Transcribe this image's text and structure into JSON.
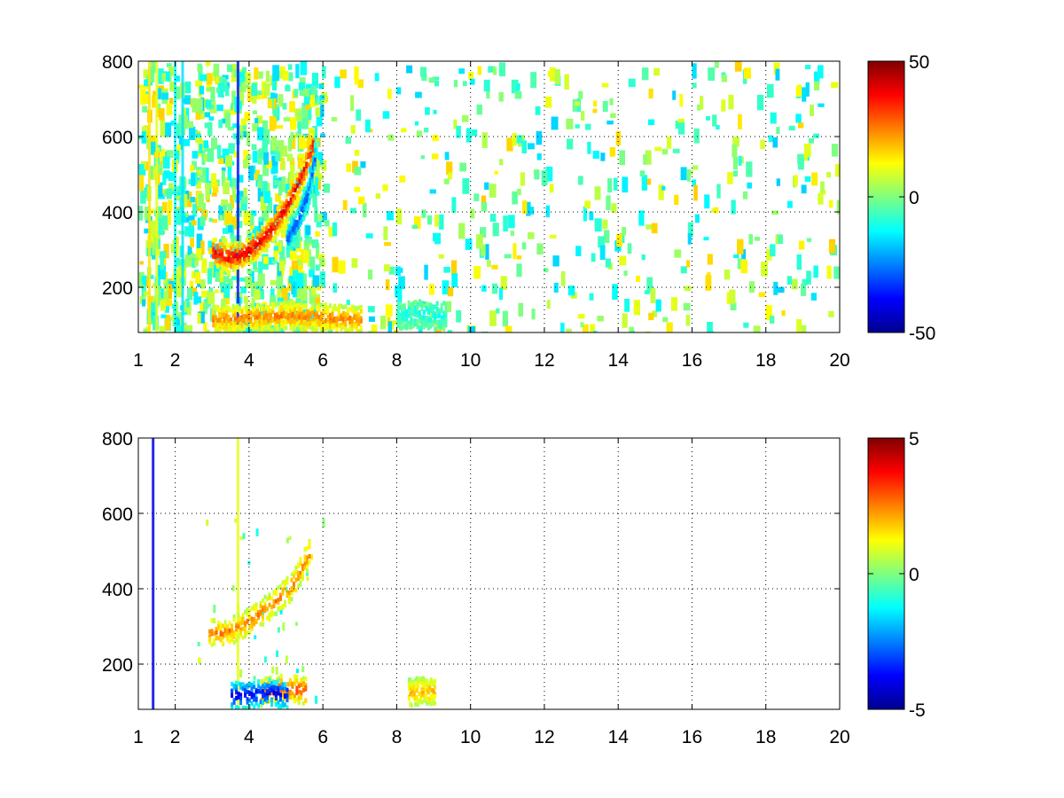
{
  "chart_data": [
    {
      "type": "heatmap",
      "title": "",
      "xlabel": "",
      "ylabel": "",
      "xlim": [
        1,
        20
      ],
      "ylim": [
        80,
        800
      ],
      "x_ticks": [
        1,
        2,
        4,
        6,
        8,
        10,
        12,
        14,
        16,
        18,
        20
      ],
      "y_ticks": [
        200,
        400,
        600,
        800
      ],
      "grid": true,
      "colormap": "jet",
      "clim": [
        -50,
        50
      ],
      "colorbar_ticks": [
        -50,
        0,
        50
      ],
      "colorbar_position": "right",
      "features": [
        {
          "desc": "main ridge",
          "x": [
            3.0,
            3.4,
            3.8,
            4.2,
            4.6,
            5.0,
            5.4,
            5.7
          ],
          "y": [
            300,
            285,
            290,
            320,
            360,
            420,
            500,
            580
          ],
          "value": 40
        },
        {
          "desc": "negative ridge",
          "x": [
            5.0,
            5.3,
            5.6,
            5.75
          ],
          "y": [
            330,
            380,
            460,
            550
          ],
          "value": -30
        },
        {
          "desc": "low band",
          "x": [
            3.0,
            4.0,
            5.0,
            6.0,
            7.0
          ],
          "y": [
            120,
            125,
            130,
            125,
            120
          ],
          "value": 25
        },
        {
          "desc": "low band 2",
          "x": [
            8.0,
            8.5,
            9.0,
            9.3
          ],
          "y": [
            130,
            135,
            130,
            130
          ],
          "value": -10
        }
      ],
      "vertical_stripes": [
        {
          "x": 1.3,
          "value": 15
        },
        {
          "x": 1.5,
          "value": 10
        },
        {
          "x": 2.0,
          "value": -12
        },
        {
          "x": 2.2,
          "value": -15
        },
        {
          "x": 3.7,
          "value": -35
        }
      ],
      "noise_density": "dense for x < 6, sparse for x > 6"
    },
    {
      "type": "heatmap",
      "title": "",
      "xlabel": "",
      "ylabel": "",
      "xlim": [
        1,
        20
      ],
      "ylim": [
        80,
        800
      ],
      "x_ticks": [
        1,
        2,
        4,
        6,
        8,
        10,
        12,
        14,
        16,
        18,
        20
      ],
      "y_ticks": [
        200,
        400,
        600,
        800
      ],
      "grid": true,
      "colormap": "jet",
      "clim": [
        -5,
        5
      ],
      "colorbar_ticks": [
        -5,
        0,
        5
      ],
      "colorbar_position": "right",
      "features": [
        {
          "desc": "main ridge",
          "x": [
            2.9,
            3.2,
            3.6,
            4.0,
            4.4,
            4.8,
            5.2,
            5.6
          ],
          "y": [
            290,
            285,
            300,
            320,
            350,
            380,
            420,
            500
          ],
          "value": 2.5
        },
        {
          "desc": "low band positive",
          "x": [
            4.3,
            4.7,
            5.1,
            5.5
          ],
          "y": [
            130,
            140,
            140,
            135
          ],
          "value": 3
        },
        {
          "desc": "low band negative",
          "x": [
            3.5,
            4.0,
            4.6,
            5.0
          ],
          "y": [
            120,
            125,
            130,
            125
          ],
          "value": -4
        },
        {
          "desc": "low band 2",
          "x": [
            8.3,
            8.6,
            9.0
          ],
          "y": [
            130,
            135,
            130
          ],
          "value": 2
        }
      ],
      "vertical_stripes": [
        {
          "x": 1.4,
          "value": -4
        },
        {
          "x": 3.7,
          "value": 1
        }
      ],
      "noise_density": "sparse, only near ridges"
    }
  ]
}
